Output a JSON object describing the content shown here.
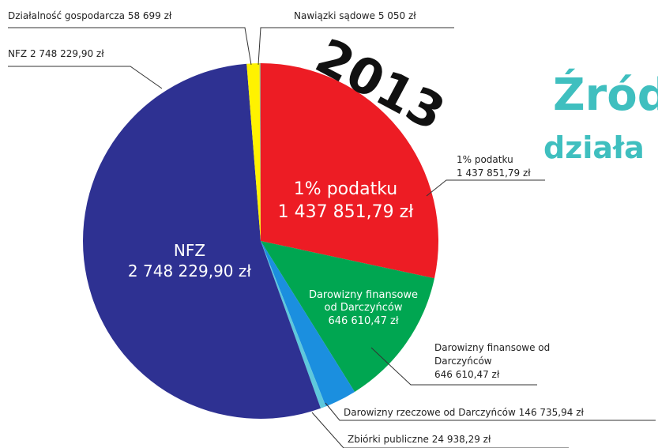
{
  "chart_data": {
    "type": "pie",
    "title": "2013",
    "heading": [
      "Źród",
      "działa"
    ],
    "categories": [
      "1% podatku",
      "Darowizny finansowe od Darczyńców",
      "Darowizny rzeczowe od Darczyńców",
      "Zbiórki publiczne",
      "NFZ",
      "Działalność gospodarcza",
      "Nawiązki sądowe"
    ],
    "values": [
      1437851.79,
      646610.47,
      146735.94,
      24938.29,
      2748229.9,
      58699,
      5050
    ],
    "value_labels": [
      "1 437 851,79 zł",
      "646 610,47 zł",
      "146 735,94 zł",
      "24 938,29 zł",
      "2 748 229,90 zł",
      "58 699 zł",
      "5 050 zł"
    ],
    "colors": [
      "#ed1c24",
      "#00a651",
      "#1b8fdf",
      "#5ec8dc",
      "#2e3192",
      "#fff200",
      "#a8a27a"
    ]
  }
}
